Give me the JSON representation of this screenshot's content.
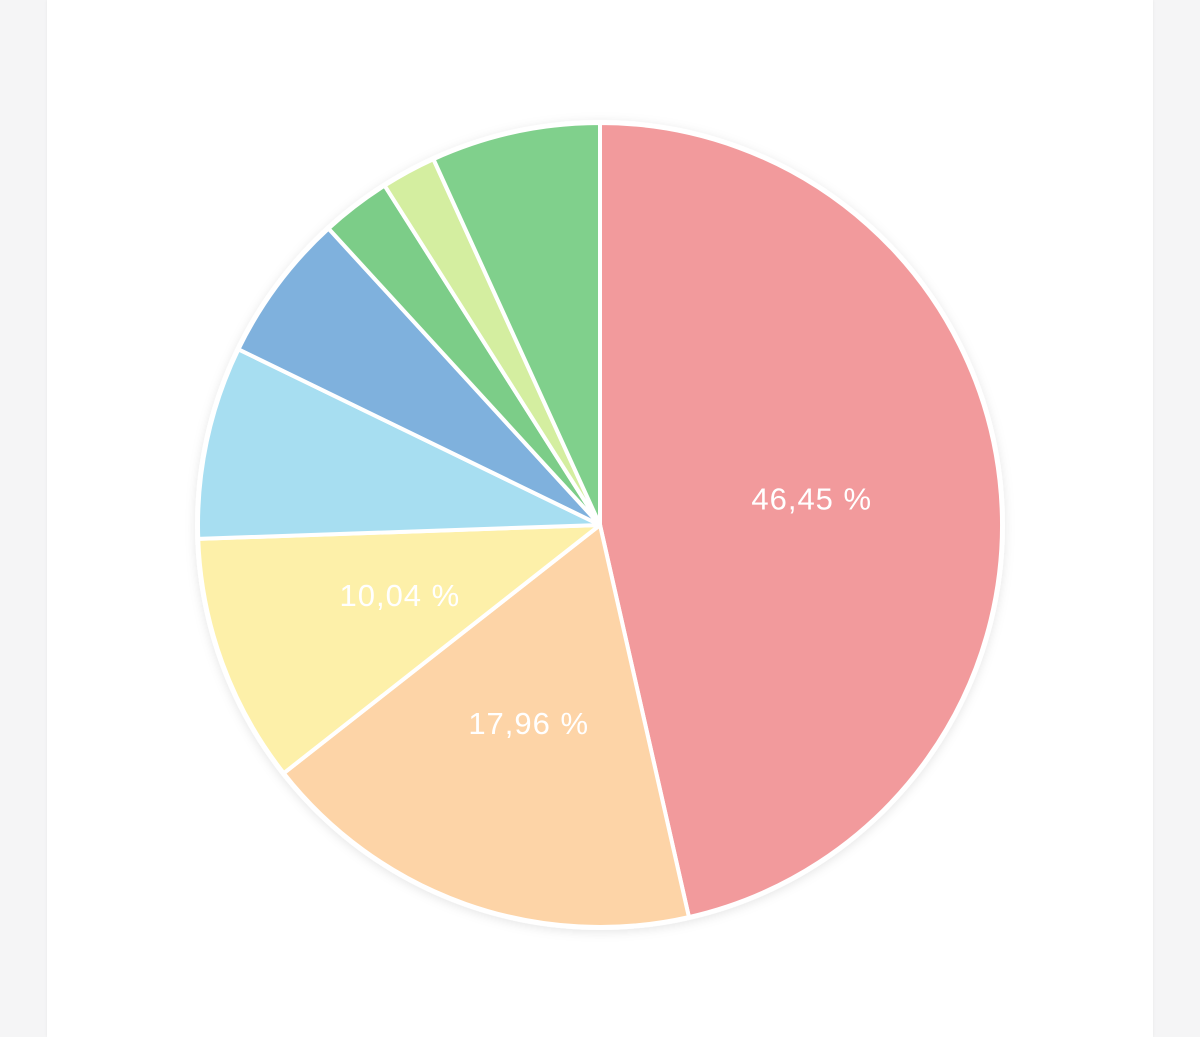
{
  "chart_data": {
    "type": "pie",
    "values": [
      46.45,
      17.96,
      10.04,
      7.75,
      6.0,
      2.8,
      2.2,
      6.8
    ],
    "value_labels": [
      "46,45 %",
      "17,96 %",
      "10,04 %",
      null,
      null,
      null,
      null,
      null
    ],
    "colors": [
      "#f29a9c",
      "#fdd4a7",
      "#fdf0a9",
      "#a7def1",
      "#7fb1dd",
      "#7ccd88",
      "#d4eea0",
      "#80d08c"
    ]
  }
}
